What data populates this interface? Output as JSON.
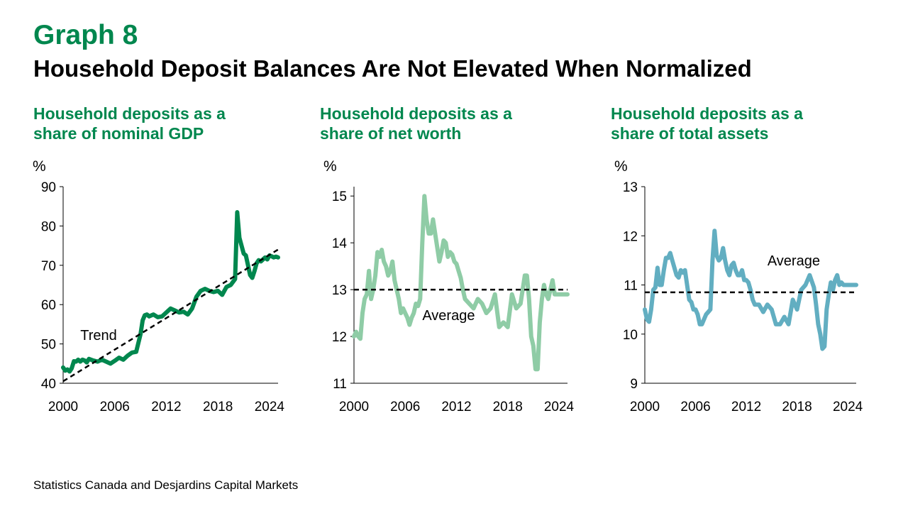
{
  "header": {
    "graph_number": "Graph 8",
    "title": "Household Deposit Balances Are Not Elevated When Normalized"
  },
  "panels": [
    {
      "title_line1": "Household deposits as a",
      "title_line2": "share of nominal GDP"
    },
    {
      "title_line1": "Household deposits as a",
      "title_line2": "share of net worth"
    },
    {
      "title_line1": "Household deposits as a",
      "title_line2": "share of total assets"
    }
  ],
  "source": "Statistics Canada and Desjardins Capital Markets",
  "chart_data": [
    {
      "type": "line",
      "title": "Household deposits as a share of nominal GDP",
      "ylabel": "%",
      "ylim": [
        40,
        90
      ],
      "yticks": [
        40,
        50,
        60,
        70,
        80,
        90
      ],
      "xlim": [
        2000,
        2025
      ],
      "xticks": [
        2000,
        2006,
        2012,
        2018,
        2024
      ],
      "color": "#00874e",
      "x": [
        2000,
        2000.25,
        2000.5,
        2000.75,
        2001,
        2001.25,
        2001.5,
        2001.75,
        2002,
        2002.25,
        2002.5,
        2002.75,
        2003,
        2003.5,
        2004,
        2004.5,
        2005,
        2005.5,
        2006,
        2006.5,
        2007,
        2007.5,
        2008,
        2008.5,
        2009,
        2009.25,
        2009.5,
        2009.75,
        2010,
        2010.5,
        2011,
        2011.5,
        2012,
        2012.5,
        2013,
        2013.5,
        2014,
        2014.5,
        2015,
        2015.5,
        2016,
        2016.5,
        2017,
        2017.5,
        2018,
        2018.5,
        2019,
        2019.5,
        2020,
        2020.25,
        2020.5,
        2020.75,
        2021,
        2021.25,
        2021.5,
        2021.75,
        2022,
        2022.25,
        2022.5,
        2022.75,
        2023,
        2023.25,
        2023.5,
        2023.75,
        2024,
        2024.25,
        2024.5,
        2024.75,
        2025
      ],
      "series": [
        {
          "name": "",
          "values": [
            44.0,
            43.2,
            43.5,
            43.0,
            43.8,
            45.6,
            45.5,
            46.0,
            45.5,
            46.0,
            45.8,
            45.3,
            46.2,
            45.8,
            45.5,
            46.0,
            45.5,
            45.0,
            45.7,
            46.5,
            46.0,
            47.0,
            47.8,
            48.0,
            52.5,
            56.0,
            57.3,
            57.5,
            57.0,
            57.5,
            56.8,
            57.0,
            58.0,
            59.0,
            58.5,
            58.0,
            58.2,
            57.5,
            59.0,
            62.0,
            63.5,
            64.0,
            63.5,
            63.2,
            63.5,
            62.5,
            64.5,
            65.0,
            66.5,
            83.5,
            77.0,
            75.0,
            73.0,
            72.5,
            70.0,
            67.5,
            66.8,
            68.5,
            70.5,
            71.3,
            71.0,
            71.5,
            72.0,
            71.5,
            72.5,
            72.3,
            72.0,
            72.2,
            72.0
          ]
        },
        {
          "name": "Trend",
          "dashed": true,
          "x": [
            2000,
            2025
          ],
          "values": [
            40.5,
            74.0
          ]
        }
      ],
      "annotations": [
        {
          "text": "Trend",
          "x": 2002.0,
          "y": 51.0
        }
      ]
    },
    {
      "type": "line",
      "title": "Household deposits as a share of net worth",
      "ylabel": "%",
      "ylim": [
        11,
        15.2
      ],
      "yticks": [
        11,
        12,
        13,
        14,
        15
      ],
      "xlim": [
        2000,
        2025
      ],
      "xticks": [
        2000,
        2006,
        2012,
        2018,
        2024
      ],
      "color": "#8fcca6",
      "x": [
        2000,
        2000.25,
        2000.5,
        2000.75,
        2001,
        2001.25,
        2001.5,
        2001.75,
        2002,
        2002.25,
        2002.5,
        2002.75,
        2003,
        2003.25,
        2003.5,
        2003.75,
        2004,
        2004.25,
        2004.5,
        2004.75,
        2005,
        2005.25,
        2005.5,
        2005.75,
        2006,
        2006.25,
        2006.5,
        2006.75,
        2007,
        2007.25,
        2007.5,
        2007.75,
        2008,
        2008.25,
        2008.5,
        2008.75,
        2009,
        2009.25,
        2009.5,
        2009.75,
        2010,
        2010.25,
        2010.5,
        2010.75,
        2011,
        2011.25,
        2011.5,
        2011.75,
        2012,
        2012.25,
        2012.5,
        2012.75,
        2013,
        2013.5,
        2014,
        2014.5,
        2015,
        2015.5,
        2016,
        2016.5,
        2017,
        2017.5,
        2018,
        2018.5,
        2019,
        2019.5,
        2020,
        2020.25,
        2020.5,
        2020.75,
        2021,
        2021.25,
        2021.5,
        2021.75,
        2022,
        2022.25,
        2022.5,
        2022.75,
        2023,
        2023.25,
        2023.5,
        2023.75,
        2024,
        2024.25,
        2024.5,
        2024.75,
        2025
      ],
      "series": [
        {
          "name": "",
          "values": [
            12.0,
            12.1,
            12.0,
            11.95,
            12.5,
            12.8,
            12.9,
            13.4,
            12.8,
            13.0,
            13.3,
            13.8,
            13.7,
            13.85,
            13.6,
            13.5,
            13.3,
            13.4,
            13.6,
            13.2,
            13.0,
            12.8,
            12.5,
            12.6,
            12.5,
            12.4,
            12.25,
            12.4,
            12.5,
            12.7,
            12.65,
            12.8,
            14.0,
            15.0,
            14.5,
            14.2,
            14.2,
            14.5,
            14.2,
            13.9,
            13.6,
            13.8,
            14.05,
            14.0,
            13.7,
            13.8,
            13.75,
            13.6,
            13.55,
            13.4,
            13.25,
            13.0,
            12.8,
            12.7,
            12.6,
            12.8,
            12.7,
            12.5,
            12.6,
            12.9,
            12.2,
            12.3,
            12.2,
            12.9,
            12.6,
            12.7,
            13.3,
            13.3,
            12.8,
            12.0,
            11.8,
            11.3,
            11.3,
            12.3,
            12.8,
            13.1,
            12.9,
            12.8,
            13.0,
            13.2,
            12.9,
            12.9,
            12.9,
            12.9,
            12.9,
            12.9,
            12.9
          ]
        },
        {
          "name": "Average",
          "dashed": true,
          "x": [
            2000,
            2025
          ],
          "values": [
            13.0,
            13.0
          ]
        }
      ],
      "annotations": [
        {
          "text": "Average",
          "x": 2008.0,
          "y": 12.35
        }
      ]
    },
    {
      "type": "line",
      "title": "Household deposits as a share of total assets",
      "ylabel": "%",
      "ylim": [
        9,
        13
      ],
      "yticks": [
        9,
        10,
        11,
        12,
        13
      ],
      "xlim": [
        2000,
        2025
      ],
      "xticks": [
        2000,
        2006,
        2012,
        2018,
        2024
      ],
      "color": "#62aec1",
      "x": [
        2000,
        2000.25,
        2000.5,
        2000.75,
        2001,
        2001.25,
        2001.5,
        2001.75,
        2002,
        2002.25,
        2002.5,
        2002.75,
        2003,
        2003.25,
        2003.5,
        2003.75,
        2004,
        2004.25,
        2004.5,
        2004.75,
        2005,
        2005.25,
        2005.5,
        2005.75,
        2006,
        2006.25,
        2006.5,
        2006.75,
        2007,
        2007.25,
        2007.5,
        2007.75,
        2008,
        2008.25,
        2008.5,
        2008.75,
        2009,
        2009.25,
        2009.5,
        2009.75,
        2010,
        2010.25,
        2010.5,
        2010.75,
        2011,
        2011.25,
        2011.5,
        2011.75,
        2012,
        2012.25,
        2012.5,
        2012.75,
        2013,
        2013.5,
        2014,
        2014.5,
        2015,
        2015.5,
        2016,
        2016.5,
        2017,
        2017.5,
        2018,
        2018.5,
        2019,
        2019.5,
        2020,
        2020.25,
        2020.5,
        2020.75,
        2021,
        2021.25,
        2021.5,
        2021.75,
        2022,
        2022.25,
        2022.5,
        2022.75,
        2023,
        2023.25,
        2023.5,
        2023.75,
        2024,
        2024.25,
        2024.5,
        2024.75,
        2025
      ],
      "series": [
        {
          "name": "",
          "values": [
            10.5,
            10.3,
            10.25,
            10.5,
            10.9,
            10.95,
            11.35,
            11.0,
            11.0,
            11.3,
            11.55,
            11.55,
            11.65,
            11.5,
            11.35,
            11.2,
            11.15,
            11.3,
            11.25,
            11.3,
            11.0,
            10.7,
            10.65,
            10.5,
            10.5,
            10.4,
            10.2,
            10.2,
            10.3,
            10.4,
            10.45,
            10.5,
            11.5,
            12.1,
            11.6,
            11.5,
            11.55,
            11.75,
            11.5,
            11.3,
            11.2,
            11.4,
            11.45,
            11.3,
            11.2,
            11.2,
            11.3,
            11.1,
            11.1,
            11.05,
            10.9,
            10.7,
            10.6,
            10.6,
            10.45,
            10.6,
            10.5,
            10.2,
            10.2,
            10.35,
            10.2,
            10.7,
            10.5,
            10.9,
            11.0,
            11.2,
            10.95,
            10.6,
            10.2,
            10.0,
            9.7,
            9.75,
            10.5,
            10.8,
            11.05,
            10.9,
            11.1,
            11.2,
            11.0,
            11.05,
            11.0,
            11.0,
            11.0,
            11.0,
            11.0,
            11.0,
            11.0
          ]
        },
        {
          "name": "Average",
          "dashed": true,
          "x": [
            2000,
            2025
          ],
          "values": [
            10.85,
            10.85
          ]
        }
      ],
      "annotations": [
        {
          "text": "Average",
          "x": 2014.5,
          "y": 11.4
        }
      ]
    }
  ]
}
